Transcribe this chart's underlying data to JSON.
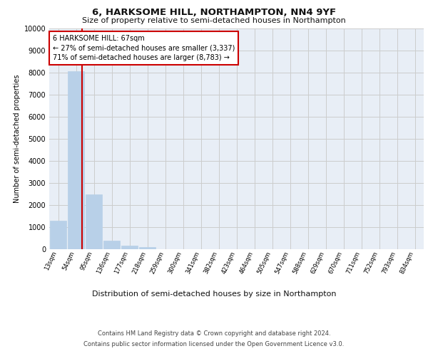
{
  "title": "6, HARKSOME HILL, NORTHAMPTON, NN4 9YF",
  "subtitle": "Size of property relative to semi-detached houses in Northampton",
  "xlabel": "Distribution of semi-detached houses by size in Northampton",
  "ylabel": "Number of semi-detached properties",
  "footer_line1": "Contains HM Land Registry data © Crown copyright and database right 2024.",
  "footer_line2": "Contains public sector information licensed under the Open Government Licence v3.0.",
  "categories": [
    "13sqm",
    "54sqm",
    "95sqm",
    "136sqm",
    "177sqm",
    "218sqm",
    "259sqm",
    "300sqm",
    "341sqm",
    "382sqm",
    "423sqm",
    "464sqm",
    "505sqm",
    "547sqm",
    "588sqm",
    "629sqm",
    "670sqm",
    "711sqm",
    "752sqm",
    "793sqm",
    "834sqm"
  ],
  "values": [
    1300,
    8050,
    2500,
    400,
    150,
    100,
    0,
    0,
    0,
    0,
    0,
    0,
    0,
    0,
    0,
    0,
    0,
    0,
    0,
    0,
    0
  ],
  "bar_color": "#b8d0e8",
  "bar_edge_color": "#b8d0e8",
  "grid_color": "#cccccc",
  "background_color": "#ffffff",
  "plot_bg_color": "#e8eef6",
  "ylim": [
    0,
    10000
  ],
  "yticks": [
    0,
    1000,
    2000,
    3000,
    4000,
    5000,
    6000,
    7000,
    8000,
    9000,
    10000
  ],
  "annotation_line1": "6 HARKSOME HILL: 67sqm",
  "annotation_line2": "← 27% of semi-detached houses are smaller (3,337)",
  "annotation_line3": "71% of semi-detached houses are larger (8,783) →",
  "annotation_box_color": "#ffffff",
  "annotation_border_color": "#cc0000",
  "red_line_color": "#cc0000",
  "red_line_x": 1.32,
  "title_fontsize": 9.5,
  "subtitle_fontsize": 8,
  "ylabel_fontsize": 7,
  "ytick_fontsize": 7,
  "xtick_fontsize": 6,
  "annotation_fontsize": 7,
  "xlabel_fontsize": 8,
  "footer_fontsize": 6
}
